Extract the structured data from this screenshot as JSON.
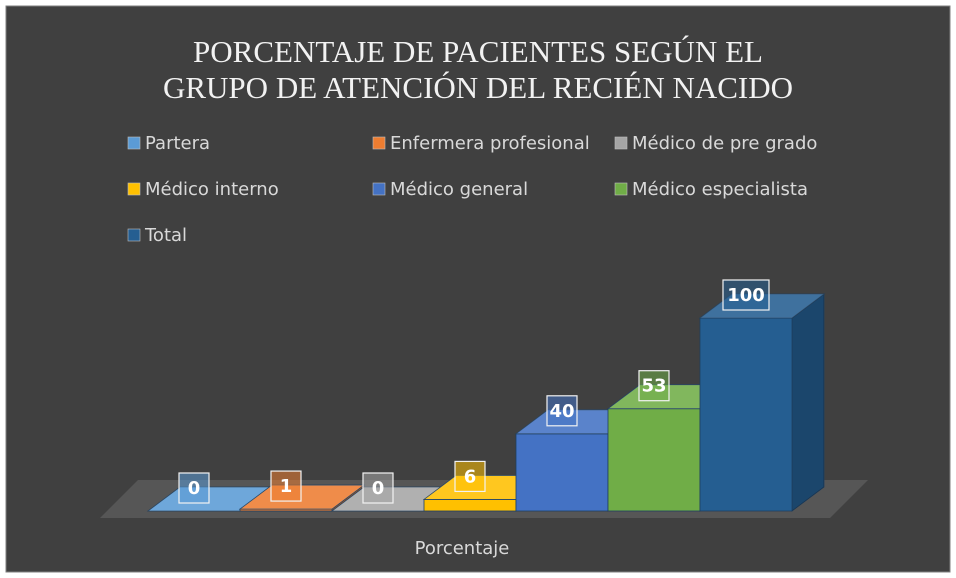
{
  "chart_data": {
    "type": "bar3d",
    "title": "PORCENTAJE DE PACIENTES SEGÚN EL GRUPO DE ATENCIÓN DEL RECIÉN NACIDO",
    "categories": [
      "Porcentaje"
    ],
    "series": [
      {
        "name": "Partera",
        "color": "#5b9bd5",
        "values": [
          0
        ]
      },
      {
        "name": "Enfermera profesional",
        "color": "#ed7d31",
        "values": [
          1
        ]
      },
      {
        "name": "Médico de pre grado",
        "color": "#a5a5a5",
        "values": [
          0
        ]
      },
      {
        "name": "Médico interno",
        "color": "#ffc000",
        "values": [
          6
        ]
      },
      {
        "name": "Médico general",
        "color": "#4472c4",
        "values": [
          40
        ]
      },
      {
        "name": "Médico especialista",
        "color": "#70ad47",
        "values": [
          53
        ]
      },
      {
        "name": "Total",
        "color": "#255e91",
        "values": [
          100
        ]
      }
    ],
    "legend": "top"
  }
}
